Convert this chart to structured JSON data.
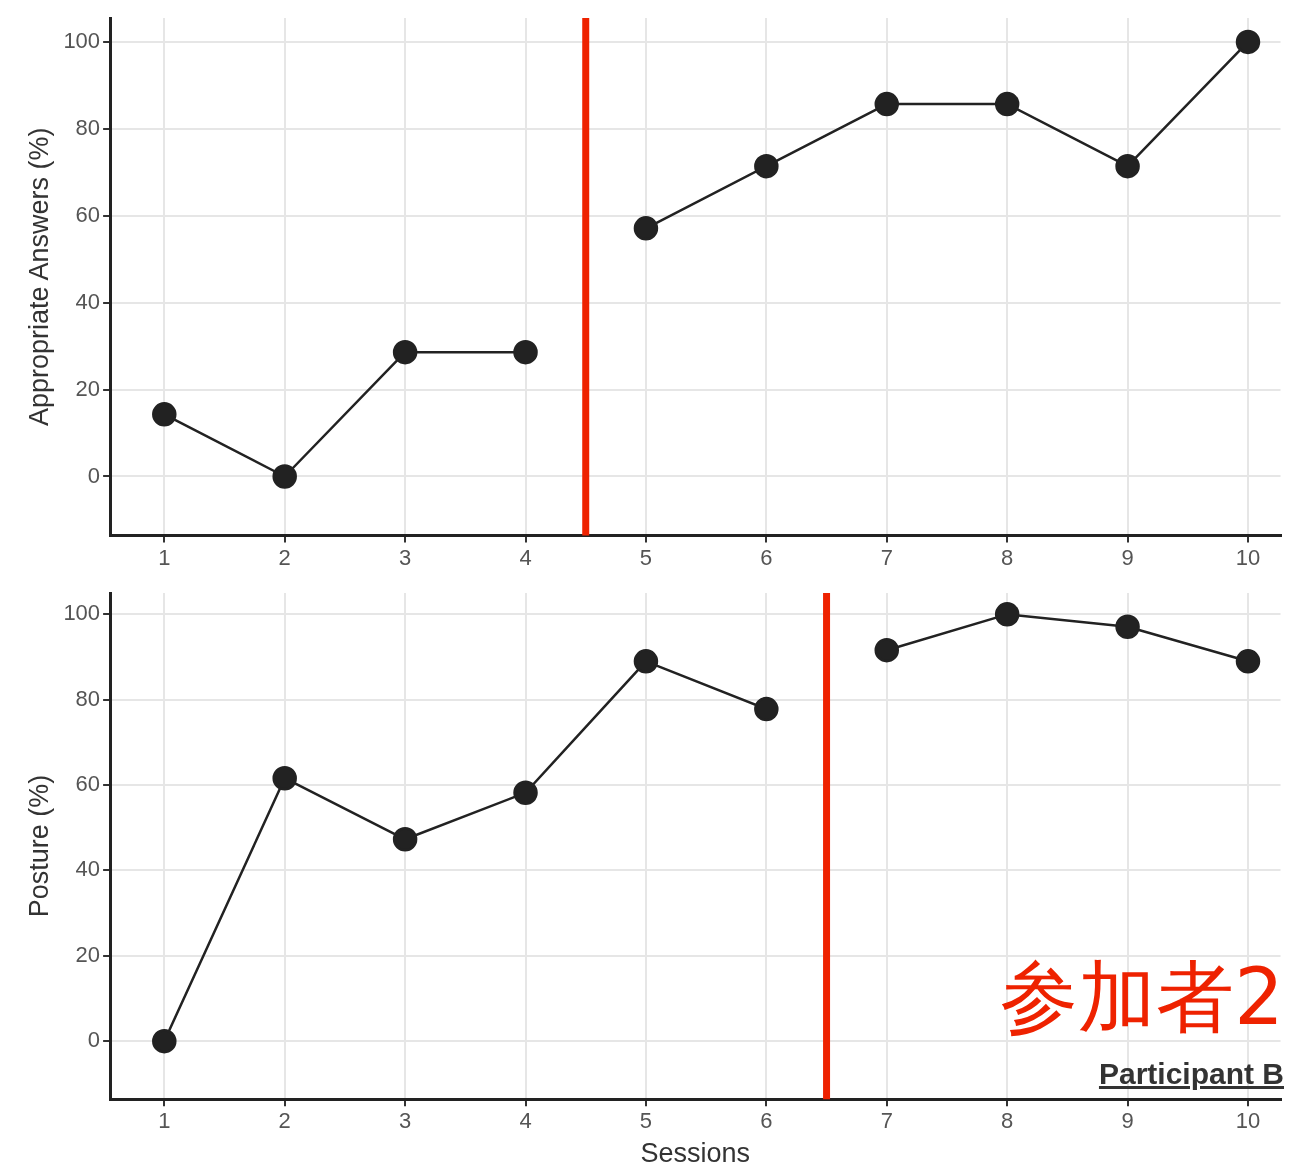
{
  "chart_data": [
    {
      "type": "line",
      "ylabel": "Appropriate Answers (%)",
      "xlim": [
        0.55,
        10.27
      ],
      "xticks": [
        1,
        2,
        3,
        4,
        5,
        6,
        7,
        8,
        9,
        10
      ],
      "ylim": [
        -13.6,
        105.5
      ],
      "yticks": [
        0,
        20,
        40,
        60,
        80,
        100
      ],
      "grid": true,
      "legend": false,
      "marker": "circle",
      "line_style": "solid",
      "series": [
        {
          "color": "#222222",
          "x": [
            1,
            2,
            3,
            4
          ],
          "values": [
            14.3,
            0,
            28.6,
            28.6
          ]
        },
        {
          "color": "#222222",
          "x": [
            5,
            6,
            7,
            8,
            9,
            10
          ],
          "values": [
            57.1,
            71.4,
            85.7,
            85.7,
            71.4,
            100
          ]
        }
      ],
      "ref_lines": [
        {
          "axis": "x",
          "value": 4.5,
          "color": "#ee2200"
        }
      ]
    },
    {
      "type": "line",
      "xlabel": "Sessions",
      "ylabel": "Posture (%)",
      "xlim": [
        0.55,
        10.27
      ],
      "xticks": [
        1,
        2,
        3,
        4,
        5,
        6,
        7,
        8,
        9,
        10
      ],
      "ylim": [
        -13.6,
        105
      ],
      "yticks": [
        0,
        20,
        40,
        60,
        80,
        100
      ],
      "grid": true,
      "legend": false,
      "marker": "circle",
      "line_style": "solid",
      "series": [
        {
          "color": "#222222",
          "x": [
            1,
            2,
            3,
            4,
            5,
            6
          ],
          "values": [
            0,
            61.6,
            47.3,
            58.2,
            89,
            77.8
          ]
        },
        {
          "color": "#222222",
          "x": [
            7,
            8,
            9,
            10
          ],
          "values": [
            91.6,
            100,
            97.1,
            89
          ]
        }
      ],
      "ref_lines": [
        {
          "axis": "x",
          "value": 6.5,
          "color": "#ee2200"
        }
      ],
      "annotations": [
        "参加者2",
        "Participant B"
      ]
    }
  ]
}
